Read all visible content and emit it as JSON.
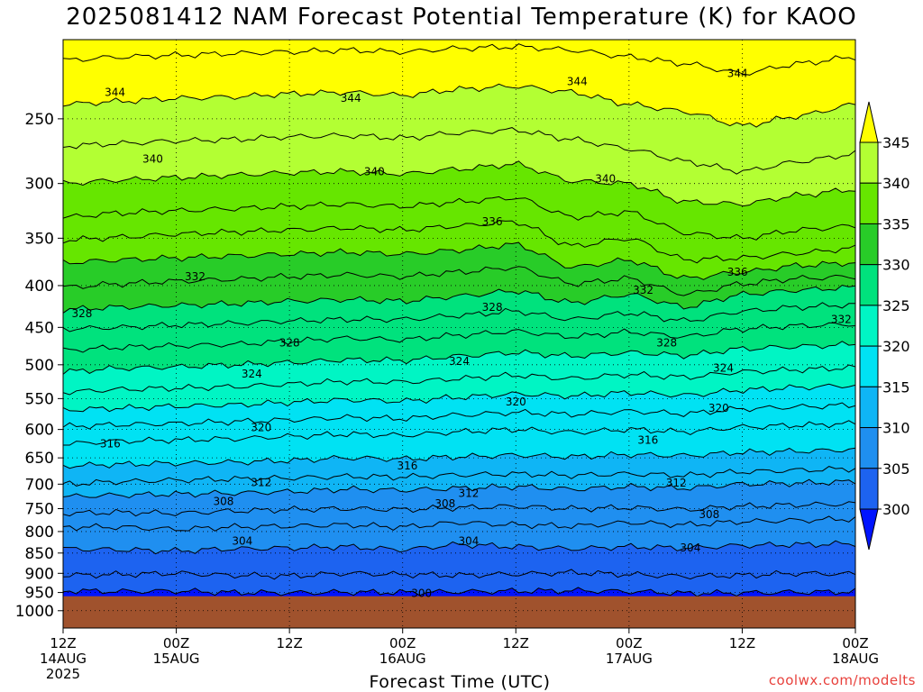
{
  "chart_data": {
    "type": "heatmap",
    "title": "2025081412 NAM Forecast Potential Temperature (K) for KAOO",
    "xlabel": "Forecast Time (UTC)",
    "credit": "coolwx.com/modelts",
    "y_axis": {
      "scale": "log-pressure",
      "ticks": [
        250,
        300,
        350,
        400,
        450,
        500,
        550,
        600,
        650,
        700,
        750,
        800,
        850,
        900,
        950,
        1000
      ],
      "range": [
        200,
        1050
      ],
      "grid": true
    },
    "x_axis": {
      "range_hours": [
        0,
        84
      ],
      "ticks": [
        {
          "hour": 0,
          "label": "12Z",
          "date": "14AUG",
          "year": "2025"
        },
        {
          "hour": 12,
          "label": "00Z",
          "date": "15AUG",
          "year": ""
        },
        {
          "hour": 24,
          "label": "12Z",
          "date": "",
          "year": ""
        },
        {
          "hour": 36,
          "label": "00Z",
          "date": "16AUG",
          "year": ""
        },
        {
          "hour": 48,
          "label": "12Z",
          "date": "",
          "year": ""
        },
        {
          "hour": 60,
          "label": "00Z",
          "date": "17AUG",
          "year": ""
        },
        {
          "hour": 72,
          "label": "12Z",
          "date": "",
          "year": ""
        },
        {
          "hour": 84,
          "label": "00Z",
          "date": "18AUG",
          "year": ""
        }
      ],
      "grid": true
    },
    "colorbar": {
      "levels": [
        300,
        305,
        310,
        315,
        320,
        325,
        330,
        335,
        340,
        345
      ],
      "labels": [
        "300",
        "305",
        "310",
        "315",
        "320",
        "325",
        "330",
        "335",
        "340",
        "345"
      ],
      "colors": [
        "#0014ff",
        "#1d63f0",
        "#1f8ff0",
        "#0fb5f5",
        "#00e2f3",
        "#00f5c4",
        "#00e27d",
        "#28cc28",
        "#66e600",
        "#b3ff33",
        "#ffff00"
      ],
      "extend": "both"
    },
    "ground_color": "#a0522d",
    "ground_level_hpa": 960,
    "contours": [
      {
        "theta": 300,
        "pressure": [
          945,
          947,
          946,
          950,
          951,
          949,
          950,
          948,
          946,
          945,
          947,
          952,
          951,
          949,
          948
        ]
      },
      {
        "theta": 302,
        "pressure": [
          905,
          903,
          900,
          905,
          907,
          900,
          903,
          905,
          902,
          898,
          903,
          908,
          905,
          900,
          902
        ]
      },
      {
        "theta": 304,
        "pressure": [
          840,
          842,
          845,
          840,
          838,
          835,
          842,
          830,
          835,
          840,
          835,
          838,
          832,
          830,
          828
        ]
      },
      {
        "theta": 306,
        "pressure": [
          790,
          790,
          795,
          790,
          788,
          785,
          790,
          780,
          785,
          788,
          780,
          785,
          778,
          775,
          772
        ]
      },
      {
        "theta": 308,
        "pressure": [
          760,
          758,
          760,
          755,
          752,
          750,
          752,
          748,
          745,
          750,
          748,
          752,
          745,
          742,
          740
        ]
      },
      {
        "theta": 310,
        "pressure": [
          725,
          722,
          720,
          718,
          715,
          710,
          712,
          708,
          705,
          710,
          705,
          708,
          700,
          698,
          695
        ]
      },
      {
        "theta": 312,
        "pressure": [
          700,
          695,
          692,
          690,
          688,
          685,
          686,
          682,
          680,
          683,
          680,
          683,
          676,
          673,
          670
        ]
      },
      {
        "theta": 314,
        "pressure": [
          665,
          662,
          660,
          658,
          655,
          650,
          652,
          648,
          645,
          648,
          644,
          646,
          640,
          638,
          635
        ]
      },
      {
        "theta": 316,
        "pressure": [
          625,
          620,
          618,
          616,
          612,
          608,
          610,
          604,
          600,
          605,
          600,
          604,
          596,
          593,
          590
        ]
      },
      {
        "theta": 318,
        "pressure": [
          595,
          592,
          590,
          587,
          584,
          580,
          582,
          576,
          572,
          575,
          570,
          574,
          566,
          563,
          560
        ]
      },
      {
        "theta": 320,
        "pressure": [
          568,
          565,
          562,
          560,
          556,
          552,
          554,
          548,
          543,
          546,
          541,
          545,
          537,
          533,
          530
        ]
      },
      {
        "theta": 322,
        "pressure": [
          540,
          536,
          534,
          532,
          528,
          524,
          525,
          520,
          515,
          520,
          514,
          518,
          510,
          507,
          504
        ]
      },
      {
        "theta": 324,
        "pressure": [
          510,
          505,
          503,
          500,
          497,
          493,
          494,
          488,
          483,
          488,
          483,
          487,
          478,
          475,
          472
        ]
      },
      {
        "theta": 326,
        "pressure": [
          480,
          476,
          474,
          472,
          468,
          464,
          466,
          460,
          455,
          462,
          456,
          462,
          452,
          448,
          446
        ]
      },
      {
        "theta": 328,
        "pressure": [
          452,
          450,
          447,
          445,
          442,
          440,
          440,
          435,
          430,
          440,
          432,
          442,
          430,
          425,
          422
        ]
      },
      {
        "theta": 330,
        "pressure": [
          428,
          425,
          423,
          421,
          418,
          416,
          418,
          412,
          406,
          420,
          410,
          425,
          410,
          405,
          402
        ]
      },
      {
        "theta": 332,
        "pressure": [
          402,
          398,
          395,
          393,
          390,
          388,
          390,
          385,
          380,
          398,
          392,
          410,
          398,
          392,
          390
        ]
      },
      {
        "theta": 334,
        "pressure": [
          375,
          372,
          370,
          368,
          366,
          364,
          366,
          362,
          356,
          380,
          372,
          392,
          385,
          378,
          375
        ]
      },
      {
        "theta": 336,
        "pressure": [
          352,
          349,
          346,
          344,
          342,
          340,
          342,
          338,
          334,
          358,
          350,
          372,
          370,
          365,
          360
        ]
      },
      {
        "theta": 338,
        "pressure": [
          330,
          326,
          324,
          322,
          320,
          318,
          320,
          316,
          312,
          330,
          325,
          345,
          350,
          342,
          338
        ]
      },
      {
        "theta": 340,
        "pressure": [
          300,
          297,
          295,
          293,
          291,
          290,
          292,
          288,
          284,
          298,
          300,
          316,
          318,
          310,
          305
        ]
      },
      {
        "theta": 342,
        "pressure": [
          270,
          268,
          266,
          265,
          263,
          262,
          264,
          260,
          258,
          265,
          272,
          282,
          290,
          282,
          276
        ]
      },
      {
        "theta": 344,
        "pressure": [
          240,
          238,
          236,
          235,
          233,
          232,
          234,
          230,
          228,
          232,
          240,
          245,
          255,
          248,
          240
        ]
      },
      {
        "theta": 346,
        "pressure": [
          212,
          210,
          209,
          208,
          207,
          206,
          207,
          205,
          204,
          206,
          210,
          214,
          220,
          214,
          210
        ]
      }
    ],
    "contour_hours": [
      0,
      6,
      12,
      18,
      24,
      30,
      36,
      42,
      48,
      54,
      60,
      66,
      72,
      78,
      84
    ],
    "contour_labels": [
      {
        "text": "344",
        "hour": 5.5,
        "pressure": 232
      },
      {
        "text": "344",
        "hour": 30.5,
        "pressure": 236
      },
      {
        "text": "344",
        "hour": 54.5,
        "pressure": 225
      },
      {
        "text": "344",
        "hour": 71.5,
        "pressure": 220
      },
      {
        "text": "340",
        "hour": 9.5,
        "pressure": 280
      },
      {
        "text": "340",
        "hour": 33.0,
        "pressure": 290
      },
      {
        "text": "340",
        "hour": 57.5,
        "pressure": 296
      },
      {
        "text": "336",
        "hour": 45.5,
        "pressure": 334
      },
      {
        "text": "336",
        "hour": 71.5,
        "pressure": 385
      },
      {
        "text": "332",
        "hour": 14.0,
        "pressure": 390
      },
      {
        "text": "332",
        "hour": 61.5,
        "pressure": 405
      },
      {
        "text": "332",
        "hour": 82.5,
        "pressure": 440
      },
      {
        "text": "328",
        "hour": 2.0,
        "pressure": 433
      },
      {
        "text": "328",
        "hour": 24.0,
        "pressure": 470
      },
      {
        "text": "328",
        "hour": 45.5,
        "pressure": 425
      },
      {
        "text": "328",
        "hour": 64.0,
        "pressure": 470
      },
      {
        "text": "324",
        "hour": 20.0,
        "pressure": 513
      },
      {
        "text": "324",
        "hour": 42.0,
        "pressure": 495
      },
      {
        "text": "324",
        "hour": 70.0,
        "pressure": 505
      },
      {
        "text": "320",
        "hour": 21.0,
        "pressure": 597
      },
      {
        "text": "320",
        "hour": 48.0,
        "pressure": 555
      },
      {
        "text": "320",
        "hour": 69.5,
        "pressure": 565
      },
      {
        "text": "316",
        "hour": 5.0,
        "pressure": 625
      },
      {
        "text": "316",
        "hour": 36.5,
        "pressure": 665
      },
      {
        "text": "316",
        "hour": 62.0,
        "pressure": 618
      },
      {
        "text": "312",
        "hour": 21.0,
        "pressure": 697
      },
      {
        "text": "312",
        "hour": 43.0,
        "pressure": 718
      },
      {
        "text": "312",
        "hour": 65.0,
        "pressure": 698
      },
      {
        "text": "308",
        "hour": 17.0,
        "pressure": 735
      },
      {
        "text": "308",
        "hour": 40.5,
        "pressure": 740
      },
      {
        "text": "308",
        "hour": 68.5,
        "pressure": 762
      },
      {
        "text": "304",
        "hour": 19.0,
        "pressure": 822
      },
      {
        "text": "304",
        "hour": 43.0,
        "pressure": 822
      },
      {
        "text": "304",
        "hour": 66.5,
        "pressure": 838
      },
      {
        "text": "300",
        "hour": 38.0,
        "pressure": 952
      }
    ]
  }
}
